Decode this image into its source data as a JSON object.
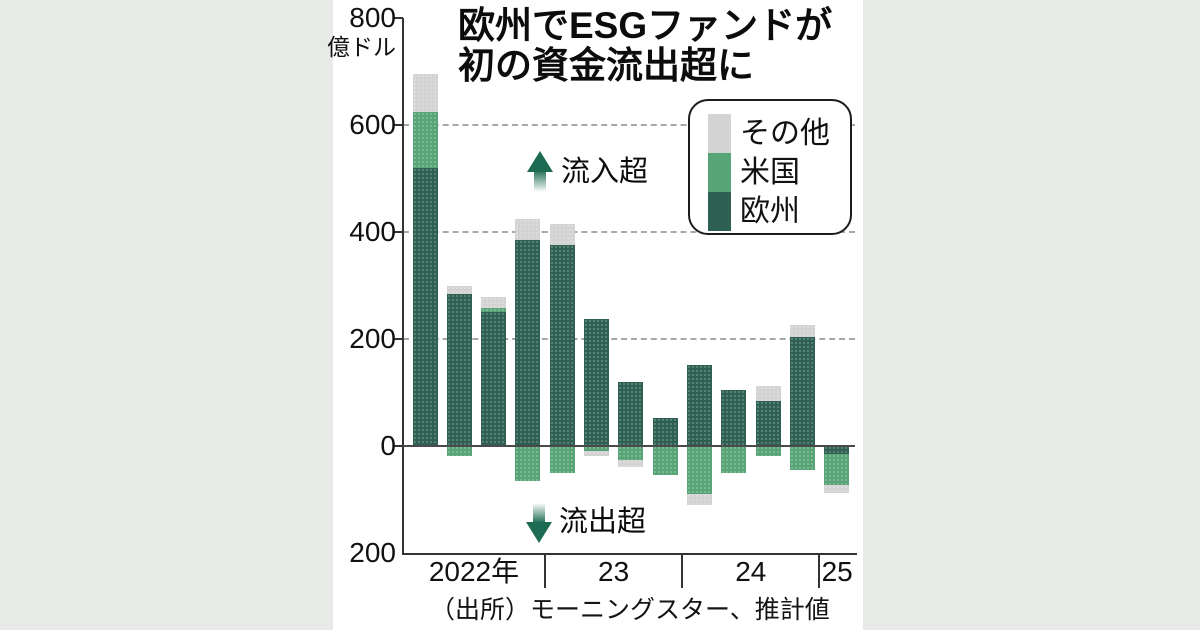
{
  "background_color": "#e8eae8",
  "panel_color": "#ffffff",
  "title": {
    "line1": "欧州でESGファンドが",
    "line2": "初の資金流出超に"
  },
  "legend": {
    "items": [
      {
        "label": "その他",
        "color": "#d2d3d2"
      },
      {
        "label": "米国",
        "color": "#57a476"
      },
      {
        "label": "欧州",
        "color": "#2d5f53"
      }
    ]
  },
  "annotations": {
    "inflow_label": "流入超",
    "outflow_label": "流出超"
  },
  "y_axis": {
    "unit_label": "億ドル",
    "ticks": [
      {
        "value": 800,
        "label": "800"
      },
      {
        "value": 600,
        "label": "600"
      },
      {
        "value": 400,
        "label": "400"
      },
      {
        "value": 200,
        "label": "200"
      },
      {
        "value": 0,
        "label": "0"
      },
      {
        "value": -200,
        "label": "200"
      }
    ]
  },
  "x_axis": {
    "group_labels": [
      "2022年",
      "23",
      "24",
      "25"
    ],
    "group_sizes": [
      4,
      4,
      4,
      1
    ]
  },
  "source_note": "（出所）モーニングスター、推計値",
  "chart_data": {
    "type": "bar",
    "stacked": true,
    "title": "欧州でESGファンドが初の資金流出超に",
    "unit": "億ドル",
    "categories": [
      "2022Q1",
      "2022Q2",
      "2022Q3",
      "2022Q4",
      "2023Q1",
      "2023Q2",
      "2023Q3",
      "2023Q4",
      "2024Q1",
      "2024Q2",
      "2024Q3",
      "2024Q4",
      "2025Q1"
    ],
    "series": [
      {
        "name": "欧州",
        "color": "#2d5f53",
        "values": [
          520,
          285,
          250,
          385,
          375,
          237,
          120,
          53,
          152,
          105,
          84,
          203,
          -15
        ]
      },
      {
        "name": "米国",
        "color": "#57a476",
        "values": [
          105,
          -18,
          8,
          -65,
          -50,
          -10,
          -27,
          -55,
          -90,
          -50,
          -18,
          -45,
          -58
        ]
      },
      {
        "name": "その他",
        "color": "#d2d3d2",
        "values": [
          70,
          15,
          20,
          40,
          40,
          -8,
          -12,
          0,
          -20,
          0,
          28,
          24,
          -15
        ]
      }
    ],
    "ylim": [
      -200,
      800
    ],
    "gridlines": [
      600,
      400,
      200
    ],
    "legend_position": "upper right",
    "grid": true
  }
}
